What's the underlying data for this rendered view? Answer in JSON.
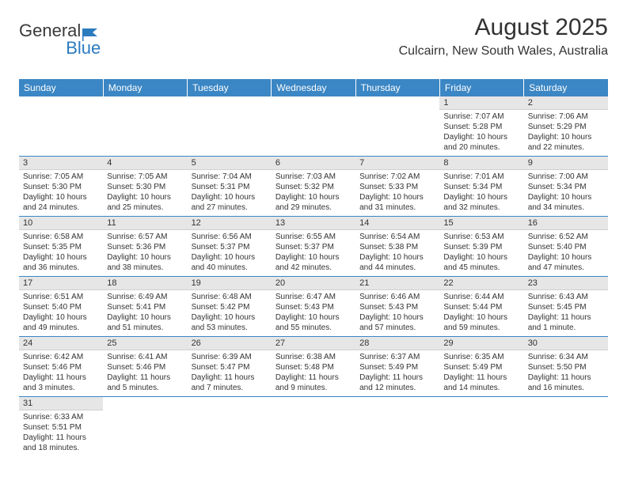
{
  "brand": {
    "general": "General",
    "blue": "Blue"
  },
  "title": "August 2025",
  "location": "Culcairn, New South Wales, Australia",
  "styling": {
    "header_bg": "#3b86c4",
    "header_fg": "#ffffff",
    "daynum_bg": "#e6e6e6",
    "row_border": "#3b86c4",
    "body_font_size": 10,
    "header_font_size": 12,
    "title_font_size": 30,
    "location_font_size": 16,
    "page_bg": "#ffffff",
    "text_color": "#333333"
  },
  "weekday_headers": [
    "Sunday",
    "Monday",
    "Tuesday",
    "Wednesday",
    "Thursday",
    "Friday",
    "Saturday"
  ],
  "weeks": [
    [
      null,
      null,
      null,
      null,
      null,
      {
        "n": "1",
        "sr": "Sunrise: 7:07 AM",
        "ss": "Sunset: 5:28 PM",
        "d1": "Daylight: 10 hours",
        "d2": "and 20 minutes."
      },
      {
        "n": "2",
        "sr": "Sunrise: 7:06 AM",
        "ss": "Sunset: 5:29 PM",
        "d1": "Daylight: 10 hours",
        "d2": "and 22 minutes."
      }
    ],
    [
      {
        "n": "3",
        "sr": "Sunrise: 7:05 AM",
        "ss": "Sunset: 5:30 PM",
        "d1": "Daylight: 10 hours",
        "d2": "and 24 minutes."
      },
      {
        "n": "4",
        "sr": "Sunrise: 7:05 AM",
        "ss": "Sunset: 5:30 PM",
        "d1": "Daylight: 10 hours",
        "d2": "and 25 minutes."
      },
      {
        "n": "5",
        "sr": "Sunrise: 7:04 AM",
        "ss": "Sunset: 5:31 PM",
        "d1": "Daylight: 10 hours",
        "d2": "and 27 minutes."
      },
      {
        "n": "6",
        "sr": "Sunrise: 7:03 AM",
        "ss": "Sunset: 5:32 PM",
        "d1": "Daylight: 10 hours",
        "d2": "and 29 minutes."
      },
      {
        "n": "7",
        "sr": "Sunrise: 7:02 AM",
        "ss": "Sunset: 5:33 PM",
        "d1": "Daylight: 10 hours",
        "d2": "and 31 minutes."
      },
      {
        "n": "8",
        "sr": "Sunrise: 7:01 AM",
        "ss": "Sunset: 5:34 PM",
        "d1": "Daylight: 10 hours",
        "d2": "and 32 minutes."
      },
      {
        "n": "9",
        "sr": "Sunrise: 7:00 AM",
        "ss": "Sunset: 5:34 PM",
        "d1": "Daylight: 10 hours",
        "d2": "and 34 minutes."
      }
    ],
    [
      {
        "n": "10",
        "sr": "Sunrise: 6:58 AM",
        "ss": "Sunset: 5:35 PM",
        "d1": "Daylight: 10 hours",
        "d2": "and 36 minutes."
      },
      {
        "n": "11",
        "sr": "Sunrise: 6:57 AM",
        "ss": "Sunset: 5:36 PM",
        "d1": "Daylight: 10 hours",
        "d2": "and 38 minutes."
      },
      {
        "n": "12",
        "sr": "Sunrise: 6:56 AM",
        "ss": "Sunset: 5:37 PM",
        "d1": "Daylight: 10 hours",
        "d2": "and 40 minutes."
      },
      {
        "n": "13",
        "sr": "Sunrise: 6:55 AM",
        "ss": "Sunset: 5:37 PM",
        "d1": "Daylight: 10 hours",
        "d2": "and 42 minutes."
      },
      {
        "n": "14",
        "sr": "Sunrise: 6:54 AM",
        "ss": "Sunset: 5:38 PM",
        "d1": "Daylight: 10 hours",
        "d2": "and 44 minutes."
      },
      {
        "n": "15",
        "sr": "Sunrise: 6:53 AM",
        "ss": "Sunset: 5:39 PM",
        "d1": "Daylight: 10 hours",
        "d2": "and 45 minutes."
      },
      {
        "n": "16",
        "sr": "Sunrise: 6:52 AM",
        "ss": "Sunset: 5:40 PM",
        "d1": "Daylight: 10 hours",
        "d2": "and 47 minutes."
      }
    ],
    [
      {
        "n": "17",
        "sr": "Sunrise: 6:51 AM",
        "ss": "Sunset: 5:40 PM",
        "d1": "Daylight: 10 hours",
        "d2": "and 49 minutes."
      },
      {
        "n": "18",
        "sr": "Sunrise: 6:49 AM",
        "ss": "Sunset: 5:41 PM",
        "d1": "Daylight: 10 hours",
        "d2": "and 51 minutes."
      },
      {
        "n": "19",
        "sr": "Sunrise: 6:48 AM",
        "ss": "Sunset: 5:42 PM",
        "d1": "Daylight: 10 hours",
        "d2": "and 53 minutes."
      },
      {
        "n": "20",
        "sr": "Sunrise: 6:47 AM",
        "ss": "Sunset: 5:43 PM",
        "d1": "Daylight: 10 hours",
        "d2": "and 55 minutes."
      },
      {
        "n": "21",
        "sr": "Sunrise: 6:46 AM",
        "ss": "Sunset: 5:43 PM",
        "d1": "Daylight: 10 hours",
        "d2": "and 57 minutes."
      },
      {
        "n": "22",
        "sr": "Sunrise: 6:44 AM",
        "ss": "Sunset: 5:44 PM",
        "d1": "Daylight: 10 hours",
        "d2": "and 59 minutes."
      },
      {
        "n": "23",
        "sr": "Sunrise: 6:43 AM",
        "ss": "Sunset: 5:45 PM",
        "d1": "Daylight: 11 hours",
        "d2": "and 1 minute."
      }
    ],
    [
      {
        "n": "24",
        "sr": "Sunrise: 6:42 AM",
        "ss": "Sunset: 5:46 PM",
        "d1": "Daylight: 11 hours",
        "d2": "and 3 minutes."
      },
      {
        "n": "25",
        "sr": "Sunrise: 6:41 AM",
        "ss": "Sunset: 5:46 PM",
        "d1": "Daylight: 11 hours",
        "d2": "and 5 minutes."
      },
      {
        "n": "26",
        "sr": "Sunrise: 6:39 AM",
        "ss": "Sunset: 5:47 PM",
        "d1": "Daylight: 11 hours",
        "d2": "and 7 minutes."
      },
      {
        "n": "27",
        "sr": "Sunrise: 6:38 AM",
        "ss": "Sunset: 5:48 PM",
        "d1": "Daylight: 11 hours",
        "d2": "and 9 minutes."
      },
      {
        "n": "28",
        "sr": "Sunrise: 6:37 AM",
        "ss": "Sunset: 5:49 PM",
        "d1": "Daylight: 11 hours",
        "d2": "and 12 minutes."
      },
      {
        "n": "29",
        "sr": "Sunrise: 6:35 AM",
        "ss": "Sunset: 5:49 PM",
        "d1": "Daylight: 11 hours",
        "d2": "and 14 minutes."
      },
      {
        "n": "30",
        "sr": "Sunrise: 6:34 AM",
        "ss": "Sunset: 5:50 PM",
        "d1": "Daylight: 11 hours",
        "d2": "and 16 minutes."
      }
    ],
    [
      {
        "n": "31",
        "sr": "Sunrise: 6:33 AM",
        "ss": "Sunset: 5:51 PM",
        "d1": "Daylight: 11 hours",
        "d2": "and 18 minutes."
      },
      null,
      null,
      null,
      null,
      null,
      null
    ]
  ]
}
